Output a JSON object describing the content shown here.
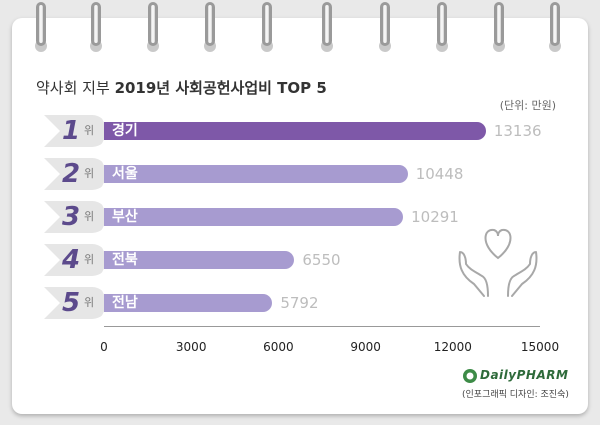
{
  "title": {
    "part1": "약사회 지부",
    "part2": "2019년 사회공헌사업비 TOP 5"
  },
  "unit_label": "(단위: 만원)",
  "rank_suffix": "위",
  "logo_text": "DailyPHARM",
  "credit": "(인포그래픽 디자인: 조진숙)",
  "colors": {
    "top_bar": "#7e58a8",
    "bar": "#a79bd0",
    "rank_number": "#5c4a8c",
    "value_text": "#bdbdbd"
  },
  "chart_data": {
    "type": "bar",
    "orientation": "horizontal",
    "title": "약사회 지부 2019년 사회공헌사업비 TOP 5",
    "unit": "(단위: 만원)",
    "ranks": [
      "1",
      "2",
      "3",
      "4",
      "5"
    ],
    "categories": [
      "경기",
      "서울",
      "부산",
      "전북",
      "전남"
    ],
    "values": [
      13136,
      10448,
      10291,
      6550,
      5792
    ],
    "value_labels": [
      "13136",
      "10448",
      "10291",
      "6550",
      "5792"
    ],
    "xlim": [
      0,
      15000
    ],
    "x_ticks": [
      "0",
      "3000",
      "6000",
      "9000",
      "12000",
      "15000"
    ],
    "x_tick_values": [
      0,
      3000,
      6000,
      9000,
      12000,
      15000
    ],
    "grid": false,
    "legend": "none"
  }
}
